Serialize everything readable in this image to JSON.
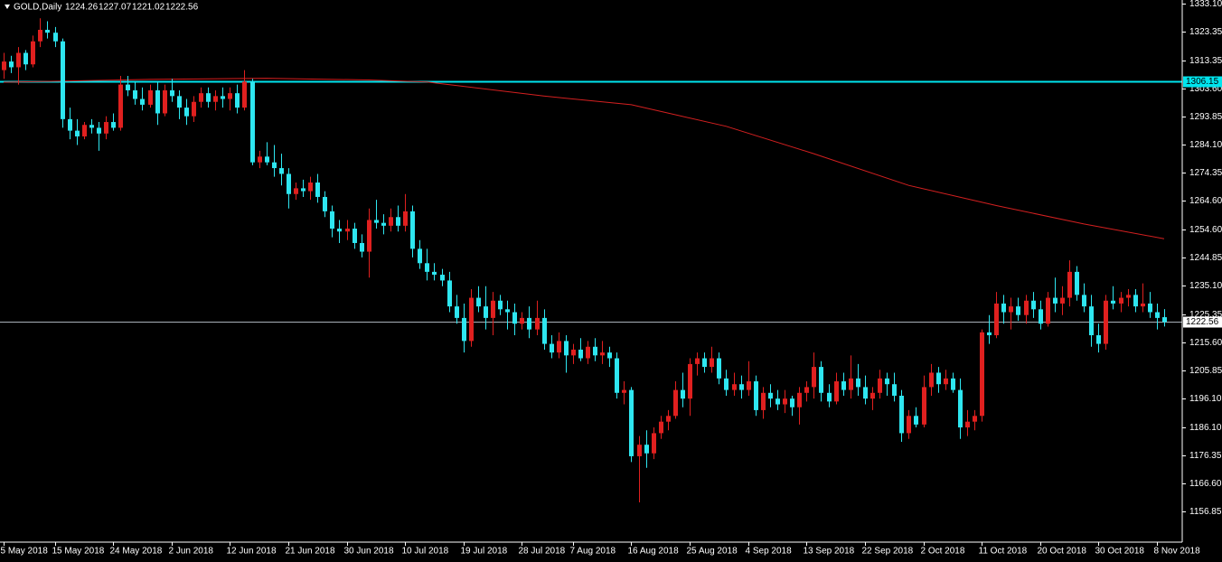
{
  "chart_data": {
    "type": "candlestick",
    "title": "GOLD,Daily",
    "bull_color": "#e0201f",
    "bear_color": "#2ee6f0",
    "ma_color": "#d42020",
    "hline_color": "#00e5ee",
    "bid_color": "#a8b0b8",
    "ylim": [
      1146.19,
      1334.35
    ],
    "yticks": [
      {
        "value": 1333.1,
        "label": "1333.10"
      },
      1323.35,
      1313.35,
      {
        "value": 1303.6,
        "label": "1303.60"
      },
      1293.85,
      {
        "value": 1284.1,
        "label": "1284.10"
      },
      1274.35,
      {
        "value": 1264.6,
        "label": "1264.60"
      },
      {
        "value": 1254.6,
        "label": "1254.60"
      },
      1244.85,
      {
        "value": 1235.1,
        "label": "1235.10"
      },
      1225.35,
      {
        "value": 1215.6,
        "label": "1215.60"
      },
      1205.85,
      {
        "value": 1196.1,
        "label": "1196.10"
      },
      {
        "value": 1186.1,
        "label": "1186.10"
      },
      1176.35,
      {
        "value": 1166.6,
        "label": "1166.60"
      },
      1156.85
    ],
    "xticks": [
      {
        "value": 0,
        "label": "5 May 2018"
      },
      {
        "value": 7,
        "label": "15 May 2018"
      },
      {
        "value": 15,
        "label": "24 May 2018"
      },
      {
        "value": 23,
        "label": "2 Jun 2018"
      },
      {
        "value": 31,
        "label": "12 Jun 2018"
      },
      {
        "value": 39,
        "label": "21 Jun 2018"
      },
      {
        "value": 47,
        "label": "30 Jun 2018"
      },
      {
        "value": 55,
        "label": "10 Jul 2018"
      },
      {
        "value": 63,
        "label": "19 Jul 2018"
      },
      {
        "value": 71,
        "label": "28 Jul 2018"
      },
      {
        "value": 78,
        "label": "7 Aug 2018"
      },
      {
        "value": 86,
        "label": "16 Aug 2018"
      },
      {
        "value": 94,
        "label": "25 Aug 2018"
      },
      {
        "value": 102,
        "label": "4 Sep 2018"
      },
      {
        "value": 110,
        "label": "13 Sep 2018"
      },
      {
        "value": 118,
        "label": "22 Sep 2018"
      },
      {
        "value": 126,
        "label": "2 Oct 2018"
      },
      {
        "value": 134,
        "label": "11 Oct 2018"
      },
      {
        "value": 142,
        "label": "20 Oct 2018"
      },
      {
        "value": 150,
        "label": "30 Oct 2018"
      },
      {
        "value": 158,
        "label": "8 Nov 2018"
      }
    ],
    "hline": 1306.15,
    "ma": {
      "x": [
        0,
        20,
        36,
        50,
        58,
        74,
        86,
        99,
        111,
        124,
        136,
        148,
        159
      ],
      "values": [
        1305.8,
        1306.8,
        1307.2,
        1306.6,
        1305.9,
        1301,
        1298,
        1290.5,
        1281,
        1270,
        1263,
        1256.6,
        1251.5
      ]
    },
    "candles": [
      [
        1310,
        1316,
        1307,
        1313
      ],
      [
        1313,
        1315,
        1309,
        1311
      ],
      [
        1311,
        1318,
        1305,
        1316
      ],
      [
        1316,
        1317,
        1310,
        1312
      ],
      [
        1312,
        1322,
        1311,
        1320
      ],
      [
        1320,
        1328,
        1318,
        1324
      ],
      [
        1324,
        1327,
        1321,
        1323
      ],
      [
        1323,
        1325,
        1318,
        1320
      ],
      [
        1320,
        1321,
        1290,
        1293
      ],
      [
        1293,
        1297,
        1286,
        1289
      ],
      [
        1289,
        1293,
        1284,
        1287
      ],
      [
        1287,
        1292,
        1286,
        1291
      ],
      [
        1291,
        1293,
        1288,
        1290
      ],
      [
        1290,
        1292,
        1282,
        1288
      ],
      [
        1288,
        1294,
        1286,
        1292
      ],
      [
        1292,
        1295,
        1289,
        1290
      ],
      [
        1290,
        1308,
        1289,
        1305
      ],
      [
        1305,
        1308,
        1301,
        1303
      ],
      [
        1303,
        1306,
        1298,
        1300
      ],
      [
        1300,
        1304,
        1296,
        1298
      ],
      [
        1298,
        1305,
        1297,
        1303
      ],
      [
        1303,
        1306,
        1291,
        1295
      ],
      [
        1295,
        1305,
        1294,
        1303
      ],
      [
        1303,
        1307,
        1299,
        1301
      ],
      [
        1301,
        1303,
        1293,
        1297
      ],
      [
        1297,
        1300,
        1291,
        1294
      ],
      [
        1294,
        1301,
        1292,
        1299
      ],
      [
        1299,
        1304,
        1297,
        1302
      ],
      [
        1302,
        1304,
        1297,
        1299
      ],
      [
        1299,
        1303,
        1296,
        1301
      ],
      [
        1301,
        1304,
        1297,
        1300
      ],
      [
        1300,
        1304,
        1296,
        1302
      ],
      [
        1302,
        1305,
        1295,
        1297
      ],
      [
        1297,
        1310,
        1296,
        1306
      ],
      [
        1306,
        1307,
        1277,
        1278
      ],
      [
        1278,
        1282,
        1276,
        1280
      ],
      [
        1280,
        1285,
        1277,
        1278
      ],
      [
        1278,
        1284,
        1273,
        1276
      ],
      [
        1276,
        1281,
        1270,
        1274
      ],
      [
        1274,
        1276,
        1262,
        1267
      ],
      [
        1267,
        1271,
        1265,
        1269
      ],
      [
        1269,
        1272,
        1266,
        1268
      ],
      [
        1268,
        1273,
        1265,
        1271
      ],
      [
        1271,
        1274,
        1264,
        1266
      ],
      [
        1266,
        1268,
        1259,
        1261
      ],
      [
        1261,
        1263,
        1252,
        1255
      ],
      [
        1255,
        1258,
        1250,
        1254
      ],
      [
        1254,
        1258,
        1251,
        1255
      ],
      [
        1255,
        1257,
        1248,
        1250
      ],
      [
        1250,
        1253,
        1245,
        1247
      ],
      [
        1247,
        1262,
        1238,
        1258
      ],
      [
        1258,
        1265,
        1255,
        1257
      ],
      [
        1257,
        1260,
        1253,
        1256
      ],
      [
        1256,
        1262,
        1254,
        1259
      ],
      [
        1259,
        1263,
        1254,
        1256
      ],
      [
        1256,
        1267,
        1254,
        1261
      ],
      [
        1261,
        1263,
        1245,
        1248
      ],
      [
        1248,
        1251,
        1241,
        1243
      ],
      [
        1243,
        1248,
        1237,
        1240
      ],
      [
        1240,
        1243,
        1237,
        1239
      ],
      [
        1239,
        1241,
        1235,
        1237
      ],
      [
        1237,
        1240,
        1226,
        1228
      ],
      [
        1228,
        1232,
        1222,
        1224
      ],
      [
        1224,
        1229,
        1212,
        1216
      ],
      [
        1216,
        1234,
        1214,
        1231
      ],
      [
        1231,
        1235,
        1226,
        1228
      ],
      [
        1228,
        1235,
        1220,
        1224
      ],
      [
        1224,
        1233,
        1218,
        1230
      ],
      [
        1230,
        1232,
        1225,
        1227
      ],
      [
        1227,
        1230,
        1220,
        1226
      ],
      [
        1226,
        1229,
        1218,
        1222
      ],
      [
        1222,
        1226,
        1220,
        1224
      ],
      [
        1224,
        1228,
        1217,
        1220
      ],
      [
        1220,
        1230,
        1218,
        1224
      ],
      [
        1224,
        1227,
        1213,
        1215
      ],
      [
        1215,
        1218,
        1210,
        1212
      ],
      [
        1212,
        1219,
        1210,
        1216
      ],
      [
        1216,
        1218,
        1205,
        1211
      ],
      [
        1211,
        1215,
        1208,
        1213
      ],
      [
        1213,
        1217,
        1209,
        1210
      ],
      [
        1210,
        1216,
        1208,
        1214
      ],
      [
        1214,
        1217,
        1209,
        1211
      ],
      [
        1211,
        1216,
        1208,
        1212
      ],
      [
        1212,
        1214,
        1207,
        1210
      ],
      [
        1210,
        1212,
        1196,
        1198
      ],
      [
        1198,
        1202,
        1194,
        1199
      ],
      [
        1199,
        1200,
        1174,
        1176
      ],
      [
        1176,
        1183,
        1160,
        1180
      ],
      [
        1180,
        1185,
        1172,
        1177
      ],
      [
        1177,
        1186,
        1175,
        1184
      ],
      [
        1184,
        1190,
        1182,
        1188
      ],
      [
        1188,
        1192,
        1185,
        1190
      ],
      [
        1190,
        1202,
        1189,
        1199
      ],
      [
        1199,
        1205,
        1193,
        1196
      ],
      [
        1196,
        1210,
        1190,
        1208
      ],
      [
        1208,
        1212,
        1204,
        1210
      ],
      [
        1210,
        1212,
        1205,
        1207
      ],
      [
        1207,
        1214,
        1205,
        1210
      ],
      [
        1210,
        1212,
        1201,
        1203
      ],
      [
        1203,
        1206,
        1197,
        1199
      ],
      [
        1199,
        1205,
        1197,
        1201
      ],
      [
        1201,
        1204,
        1196,
        1199
      ],
      [
        1199,
        1209,
        1197,
        1202
      ],
      [
        1202,
        1204,
        1190,
        1192
      ],
      [
        1192,
        1200,
        1189,
        1198
      ],
      [
        1198,
        1201,
        1193,
        1196
      ],
      [
        1196,
        1199,
        1192,
        1194
      ],
      [
        1194,
        1199,
        1191,
        1196
      ],
      [
        1196,
        1197,
        1190,
        1193
      ],
      [
        1193,
        1200,
        1187,
        1198
      ],
      [
        1198,
        1202,
        1195,
        1200
      ],
      [
        1200,
        1212,
        1196,
        1207
      ],
      [
        1207,
        1209,
        1195,
        1198
      ],
      [
        1198,
        1201,
        1193,
        1195
      ],
      [
        1195,
        1205,
        1194,
        1202
      ],
      [
        1202,
        1205,
        1197,
        1199
      ],
      [
        1199,
        1211,
        1196,
        1203
      ],
      [
        1203,
        1208,
        1197,
        1200
      ],
      [
        1200,
        1204,
        1194,
        1196
      ],
      [
        1196,
        1200,
        1192,
        1198
      ],
      [
        1198,
        1206,
        1196,
        1203
      ],
      [
        1203,
        1205,
        1197,
        1201
      ],
      [
        1201,
        1205,
        1195,
        1197
      ],
      [
        1197,
        1199,
        1181,
        1184
      ],
      [
        1184,
        1192,
        1182,
        1190
      ],
      [
        1190,
        1193,
        1186,
        1187
      ],
      [
        1187,
        1204,
        1186,
        1200
      ],
      [
        1200,
        1208,
        1197,
        1205
      ],
      [
        1205,
        1207,
        1198,
        1201
      ],
      [
        1201,
        1206,
        1199,
        1203
      ],
      [
        1203,
        1205,
        1198,
        1199
      ],
      [
        1199,
        1203,
        1182,
        1186
      ],
      [
        1186,
        1192,
        1183,
        1188
      ],
      [
        1188,
        1192,
        1185,
        1190
      ],
      [
        1190,
        1220,
        1188,
        1219
      ],
      [
        1219,
        1225,
        1215,
        1218
      ],
      [
        1218,
        1233,
        1217,
        1229
      ],
      [
        1229,
        1232,
        1222,
        1226
      ],
      [
        1226,
        1231,
        1220,
        1228
      ],
      [
        1228,
        1231,
        1223,
        1225
      ],
      [
        1225,
        1232,
        1222,
        1230
      ],
      [
        1230,
        1233,
        1224,
        1227
      ],
      [
        1227,
        1230,
        1220,
        1222
      ],
      [
        1222,
        1233,
        1221,
        1231
      ],
      [
        1231,
        1238,
        1226,
        1229
      ],
      [
        1229,
        1235,
        1225,
        1231
      ],
      [
        1231,
        1244,
        1228,
        1240
      ],
      [
        1240,
        1242,
        1230,
        1232
      ],
      [
        1232,
        1236,
        1226,
        1228
      ],
      [
        1228,
        1232,
        1214,
        1218
      ],
      [
        1218,
        1222,
        1212,
        1215
      ],
      [
        1215,
        1232,
        1213,
        1230
      ],
      [
        1230,
        1235,
        1227,
        1229
      ],
      [
        1229,
        1233,
        1226,
        1231
      ],
      [
        1231,
        1234,
        1228,
        1232
      ],
      [
        1232,
        1234,
        1226,
        1228
      ],
      [
        1228,
        1236,
        1226,
        1229
      ],
      [
        1229,
        1233,
        1224,
        1226
      ],
      [
        1226,
        1229,
        1220,
        1224
      ],
      [
        1224.26,
        1227.07,
        1221.02,
        1222.56
      ]
    ]
  }
}
